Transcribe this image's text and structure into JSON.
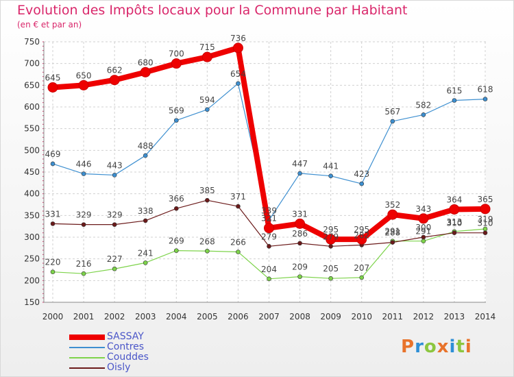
{
  "header": {
    "title": "Evolution des Impôts locaux pour la Commune par Habitant",
    "subtitle": "(en € et par an)"
  },
  "logo": {
    "text": "Proxiti",
    "colors": [
      "#e8732b",
      "#2e8fd6",
      "#8cc63f",
      "#e8732b",
      "#2e8fd6",
      "#8cc63f",
      "#e8732b"
    ]
  },
  "chart_data": {
    "type": "line",
    "title": "Evolution des Impôts locaux pour la Commune par Habitant",
    "subtitle": "(en € et par an)",
    "x": [
      "2000",
      "2001",
      "2002",
      "2003",
      "2004",
      "2005",
      "2006",
      "2007",
      "2008",
      "2009",
      "2010",
      "2011",
      "2012",
      "2013",
      "2014"
    ],
    "ylim": [
      150,
      750
    ],
    "yticks": [
      150,
      200,
      250,
      300,
      350,
      400,
      450,
      500,
      550,
      600,
      650,
      700,
      750
    ],
    "grid": true,
    "legend_position": "bottom-left",
    "series": [
      {
        "name": "SASSAY",
        "color": "#ee0000",
        "values": [
          645,
          650,
          662,
          680,
          700,
          715,
          736,
          321,
          331,
          295,
          295,
          352,
          343,
          364,
          365
        ]
      },
      {
        "name": "Contres",
        "color": "#3d8fd0",
        "values": [
          469,
          446,
          443,
          488,
          569,
          594,
          654,
          339,
          447,
          441,
          423,
          567,
          582,
          615,
          618
        ]
      },
      {
        "name": "Couddes",
        "color": "#7dd34a",
        "values": [
          220,
          216,
          227,
          241,
          269,
          268,
          266,
          204,
          209,
          205,
          207,
          291,
          291,
          313,
          319
        ]
      },
      {
        "name": "Oisly",
        "color": "#6b1a1a",
        "values": [
          331,
          329,
          329,
          338,
          366,
          385,
          371,
          279,
          286,
          279,
          282,
          288,
          300,
          310,
          310
        ]
      }
    ]
  }
}
